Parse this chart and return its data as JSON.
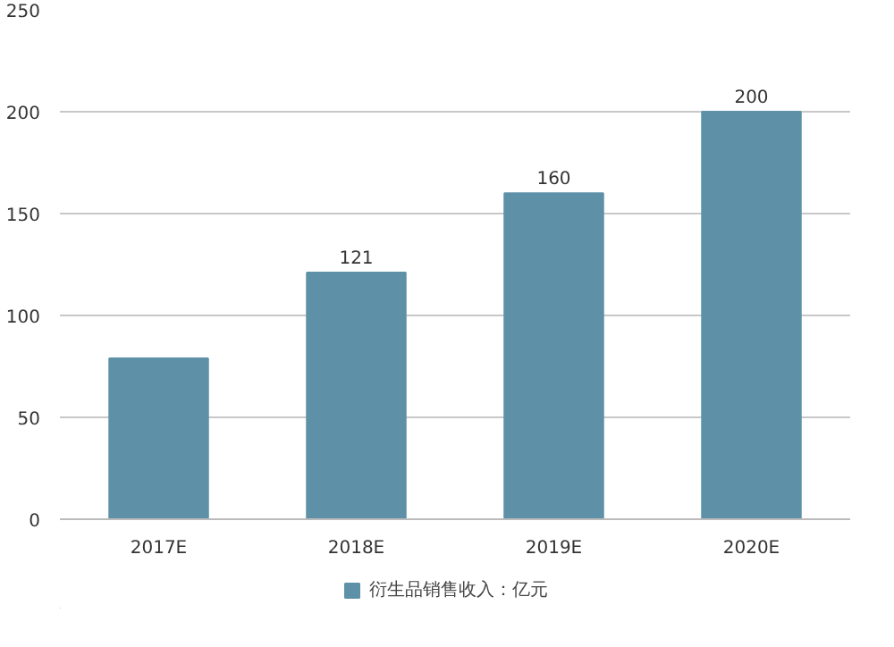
{
  "chart_data": {
    "type": "bar",
    "categories": [
      "2017E",
      "2018E",
      "2019E",
      "2020E"
    ],
    "series": [
      {
        "name": "衍生品销售收入：亿元",
        "color": "#5e91a8",
        "values": [
          79,
          121,
          160,
          200
        ],
        "value_labels": [
          null,
          "121",
          "160",
          "200"
        ]
      }
    ],
    "ylim": [
      0,
      250
    ],
    "yticks": [
      0,
      50,
      100,
      150,
      200,
      250
    ],
    "grid": "y",
    "legend": "bottom"
  }
}
